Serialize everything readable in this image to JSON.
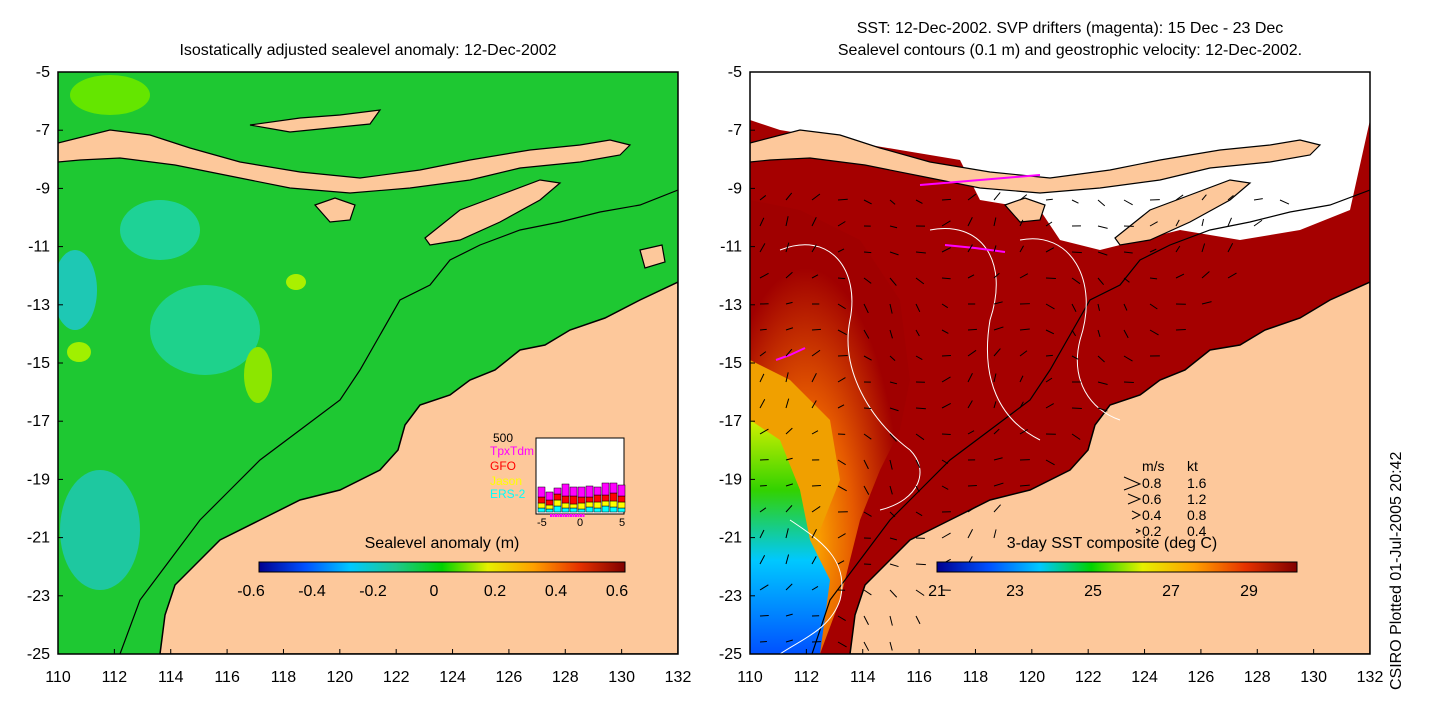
{
  "left_panel": {
    "title": "Isostatically adjusted sealevel anomaly: 12-Dec-2002",
    "colorbar_label": "Sealevel anomaly (m)",
    "colorbar_ticks": [
      "-0.6",
      "-0.4",
      "-0.2",
      "0",
      "0.2",
      "0.4",
      "0.6"
    ],
    "colorbar_colors": [
      "#00008f",
      "#0050ff",
      "#00c8ff",
      "#1ec88c",
      "#00d200",
      "#e6f000",
      "#ffa000",
      "#e63200",
      "#800000"
    ],
    "inset": {
      "max_label": "500",
      "legend": [
        {
          "name": "TpxTdm",
          "color": "#ff00ff"
        },
        {
          "name": "GFO",
          "color": "#ff0000"
        },
        {
          "name": "Jason",
          "color": "#ffff00"
        },
        {
          "name": "ERS-2",
          "color": "#00ffff"
        }
      ],
      "x_ticks": [
        "-5",
        "0",
        "5"
      ]
    }
  },
  "right_panel": {
    "title_line1": "SST: 12-Dec-2002. SVP drifters (magenta): 15 Dec - 23 Dec",
    "title_line2": "Sealevel contours (0.1 m) and geostrophic velocity: 12-Dec-2002.",
    "colorbar_label": "3-day SST composite (deg C)",
    "colorbar_ticks": [
      "21",
      "23",
      "25",
      "27",
      "29"
    ],
    "colorbar_colors": [
      "#00008f",
      "#0050ff",
      "#00c8ff",
      "#00d200",
      "#e6f000",
      "#ffa000",
      "#e63200",
      "#800000"
    ],
    "velocity_legend": {
      "header_ms": "m/s",
      "header_kt": "kt",
      "rows": [
        {
          "ms": "0.8",
          "kt": "1.6"
        },
        {
          "ms": "0.6",
          "kt": "1.2"
        },
        {
          "ms": "0.4",
          "kt": "0.8"
        },
        {
          "ms": "0.2",
          "kt": "0.4"
        }
      ]
    }
  },
  "axes": {
    "y_ticks": [
      "-5",
      "-7",
      "-9",
      "-11",
      "-13",
      "-15",
      "-17",
      "-19",
      "-21",
      "-23",
      "-25"
    ],
    "x_ticks": [
      "110",
      "112",
      "114",
      "116",
      "118",
      "120",
      "122",
      "124",
      "126",
      "128",
      "130",
      "132"
    ]
  },
  "footer_vertical": "CSIRO Plotted 01-Jul-2005 20:42",
  "chart_data": {
    "type": "heatmap",
    "maps": [
      {
        "name": "Isostatically adjusted sealevel anomaly",
        "date": "12-Dec-2002",
        "units": "m",
        "color_range": [
          -0.6,
          0.6
        ]
      },
      {
        "name": "3-day SST composite",
        "date": "12-Dec-2002",
        "units": "deg C",
        "color_range": [
          21,
          29
        ]
      }
    ],
    "lon_range": [
      110,
      132
    ],
    "lat_range": [
      -25,
      -5
    ]
  }
}
